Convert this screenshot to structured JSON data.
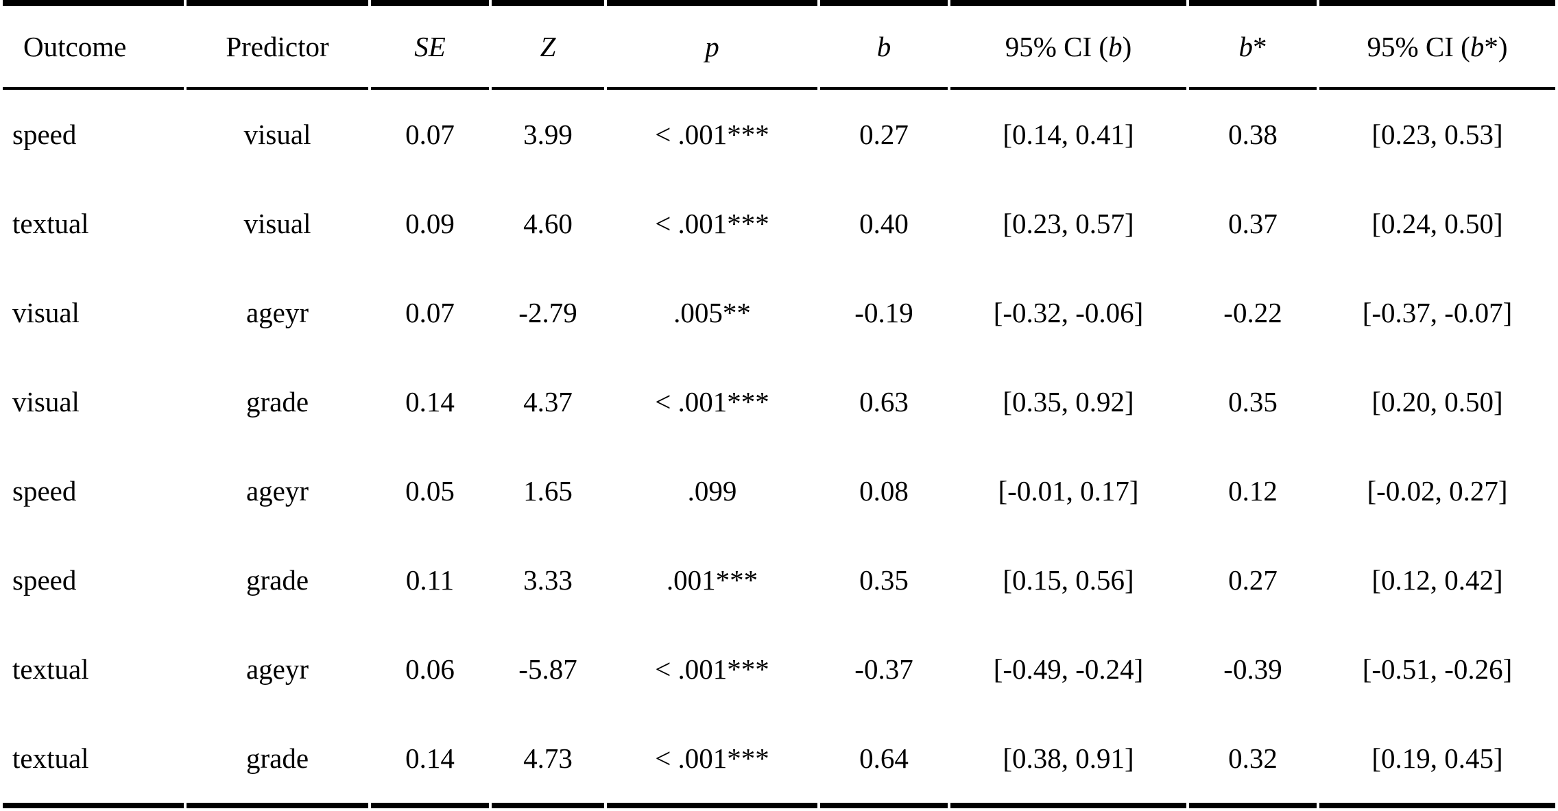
{
  "colors": {
    "background": "#ffffff",
    "text": "#000000",
    "rule": "#000000"
  },
  "table": {
    "kind": "regression-results",
    "columns": [
      {
        "id": "outcome",
        "label": "Outcome",
        "align": "left",
        "parts": [
          {
            "text": "Outcome",
            "italic": false
          }
        ]
      },
      {
        "id": "predictor",
        "label": "Predictor",
        "align": "center",
        "parts": [
          {
            "text": "Predictor",
            "italic": false
          }
        ]
      },
      {
        "id": "se",
        "label": "SE",
        "align": "center",
        "parts": [
          {
            "text": "SE",
            "italic": true
          }
        ]
      },
      {
        "id": "z",
        "label": "Z",
        "align": "center",
        "parts": [
          {
            "text": "Z",
            "italic": true
          }
        ]
      },
      {
        "id": "p",
        "label": "p",
        "align": "center",
        "parts": [
          {
            "text": "p",
            "italic": true
          }
        ]
      },
      {
        "id": "b",
        "label": "b",
        "align": "center",
        "parts": [
          {
            "text": "b",
            "italic": true
          }
        ]
      },
      {
        "id": "ci_b",
        "label": "95% CI (b)",
        "align": "center",
        "parts": [
          {
            "text": "95% CI (",
            "italic": false
          },
          {
            "text": "b",
            "italic": true
          },
          {
            "text": ")",
            "italic": false
          }
        ]
      },
      {
        "id": "b_star",
        "label": "b*",
        "align": "center",
        "parts": [
          {
            "text": "b",
            "italic": true
          },
          {
            "text": "*",
            "italic": false
          }
        ]
      },
      {
        "id": "ci_b_star",
        "label": "95% CI (b*)",
        "align": "center",
        "parts": [
          {
            "text": "95% CI (",
            "italic": false
          },
          {
            "text": "b",
            "italic": true
          },
          {
            "text": "*)",
            "italic": false
          }
        ]
      }
    ],
    "rows": [
      [
        "speed",
        "visual",
        "0.07",
        "3.99",
        "< .001***",
        "0.27",
        "[0.14, 0.41]",
        "0.38",
        "[0.23, 0.53]"
      ],
      [
        "textual",
        "visual",
        "0.09",
        "4.60",
        "< .001***",
        "0.40",
        "[0.23, 0.57]",
        "0.37",
        "[0.24, 0.50]"
      ],
      [
        "visual",
        "ageyr",
        "0.07",
        "-2.79",
        ".005**",
        "-0.19",
        "[-0.32, -0.06]",
        "-0.22",
        "[-0.37, -0.07]"
      ],
      [
        "visual",
        "grade",
        "0.14",
        "4.37",
        "< .001***",
        "0.63",
        "[0.35, 0.92]",
        "0.35",
        "[0.20, 0.50]"
      ],
      [
        "speed",
        "ageyr",
        "0.05",
        "1.65",
        ".099",
        "0.08",
        "[-0.01, 0.17]",
        "0.12",
        "[-0.02, 0.27]"
      ],
      [
        "speed",
        "grade",
        "0.11",
        "3.33",
        ".001***",
        "0.35",
        "[0.15, 0.56]",
        "0.27",
        "[0.12, 0.42]"
      ],
      [
        "textual",
        "ageyr",
        "0.06",
        "-5.87",
        "< .001***",
        "-0.37",
        "[-0.49, -0.24]",
        "-0.39",
        "[-0.51, -0.26]"
      ],
      [
        "textual",
        "grade",
        "0.14",
        "4.73",
        "< .001***",
        "0.64",
        "[0.38, 0.91]",
        "0.32",
        "[0.19, 0.45]"
      ]
    ]
  }
}
